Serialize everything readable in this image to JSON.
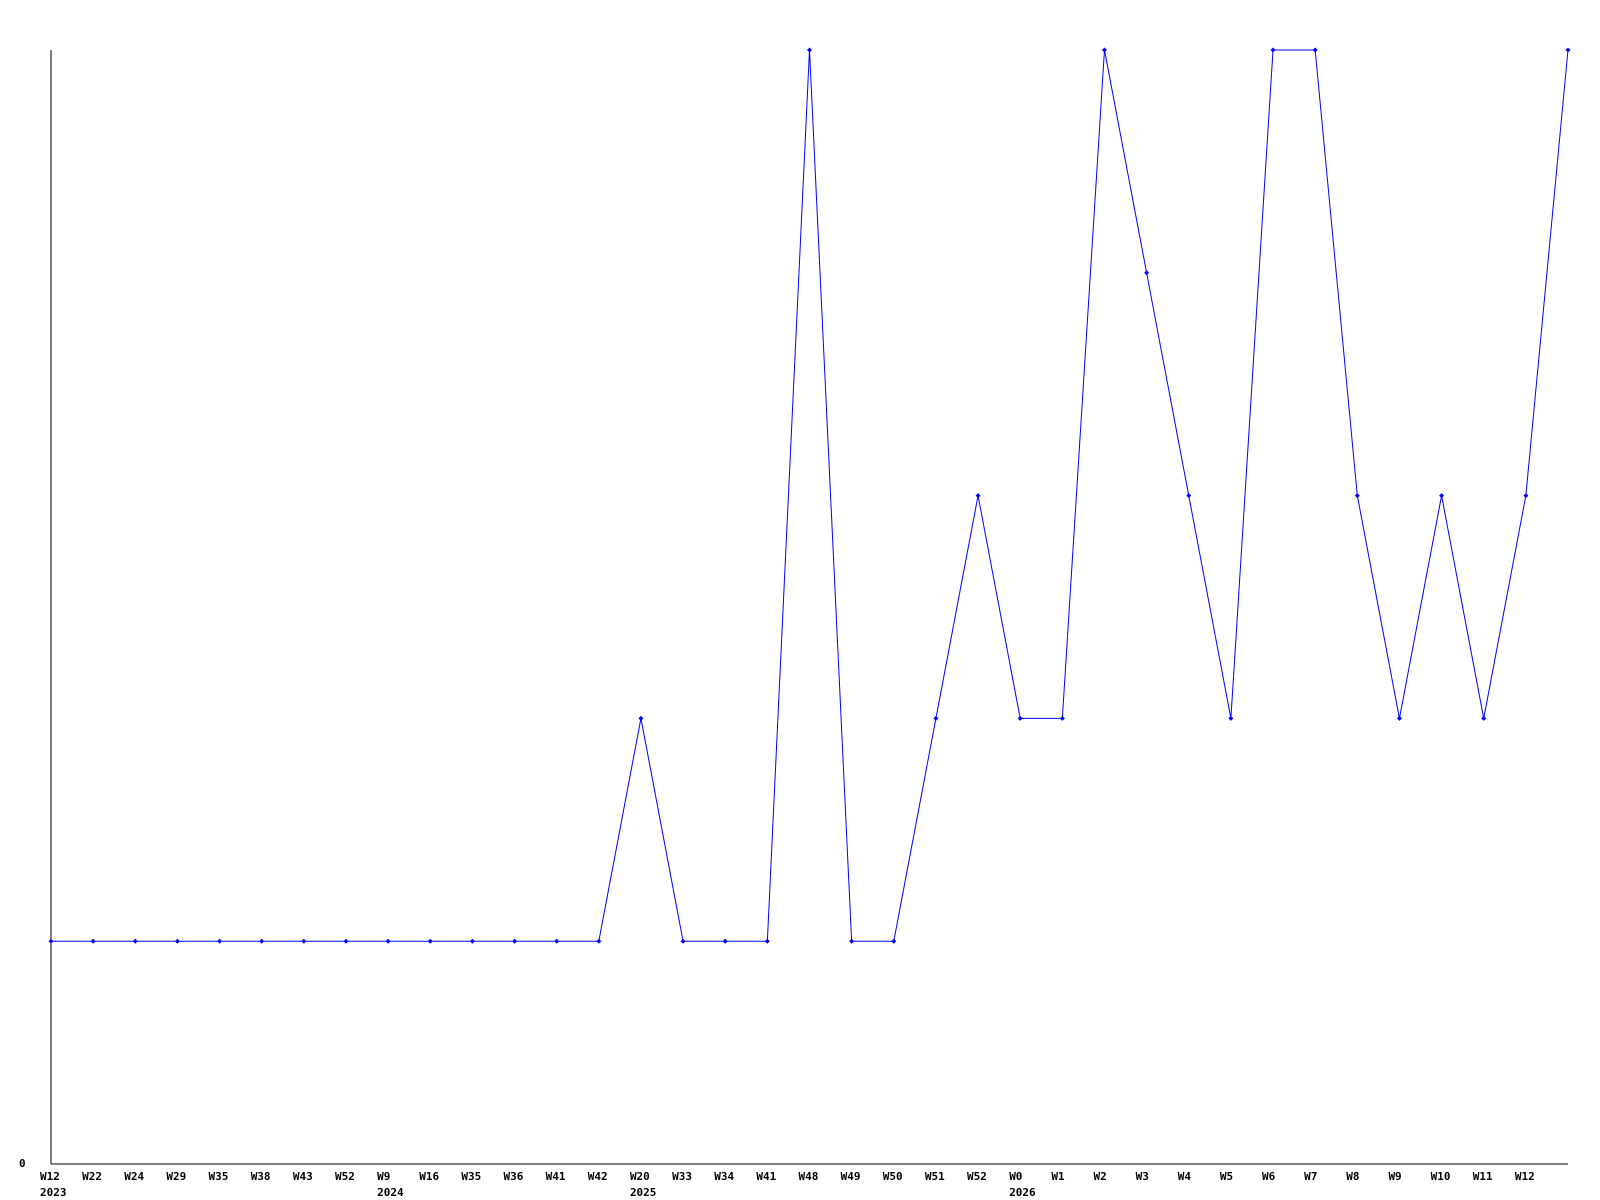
{
  "chart_data": {
    "type": "line",
    "title": "",
    "xlabel": "",
    "ylabel": "",
    "ylim": [
      0,
      5
    ],
    "y_tick_labels": [
      "0"
    ],
    "grid": false,
    "line_color": "#0000ff",
    "axis_color": "#000000",
    "categories": [
      {
        "label": "W12",
        "year": "2023"
      },
      {
        "label": "W22"
      },
      {
        "label": "W24"
      },
      {
        "label": "W29"
      },
      {
        "label": "W35"
      },
      {
        "label": "W38"
      },
      {
        "label": "W43"
      },
      {
        "label": "W52"
      },
      {
        "label": "W9",
        "year": "2024"
      },
      {
        "label": "W16"
      },
      {
        "label": "W35"
      },
      {
        "label": "W36"
      },
      {
        "label": "W41"
      },
      {
        "label": "W42"
      },
      {
        "label": "W20",
        "year": "2025"
      },
      {
        "label": "W33"
      },
      {
        "label": "W34"
      },
      {
        "label": "W41"
      },
      {
        "label": "W48"
      },
      {
        "label": "W49"
      },
      {
        "label": "W50"
      },
      {
        "label": "W51"
      },
      {
        "label": "W52"
      },
      {
        "label": "W0",
        "year": "2026"
      },
      {
        "label": "W1"
      },
      {
        "label": "W2"
      },
      {
        "label": "W3"
      },
      {
        "label": "W4"
      },
      {
        "label": "W5"
      },
      {
        "label": "W6"
      },
      {
        "label": "W7"
      },
      {
        "label": "W8"
      },
      {
        "label": "W9"
      },
      {
        "label": "W10"
      },
      {
        "label": "W11"
      },
      {
        "label": "W12"
      },
      {
        "label": ""
      }
    ],
    "values": [
      1,
      1,
      1,
      1,
      1,
      1,
      1,
      1,
      1,
      1,
      1,
      1,
      1,
      1,
      2,
      1,
      1,
      1,
      5,
      1,
      1,
      2,
      3,
      2,
      2,
      5,
      4,
      3,
      2,
      5,
      5,
      3,
      2,
      3,
      2,
      3,
      5
    ]
  }
}
